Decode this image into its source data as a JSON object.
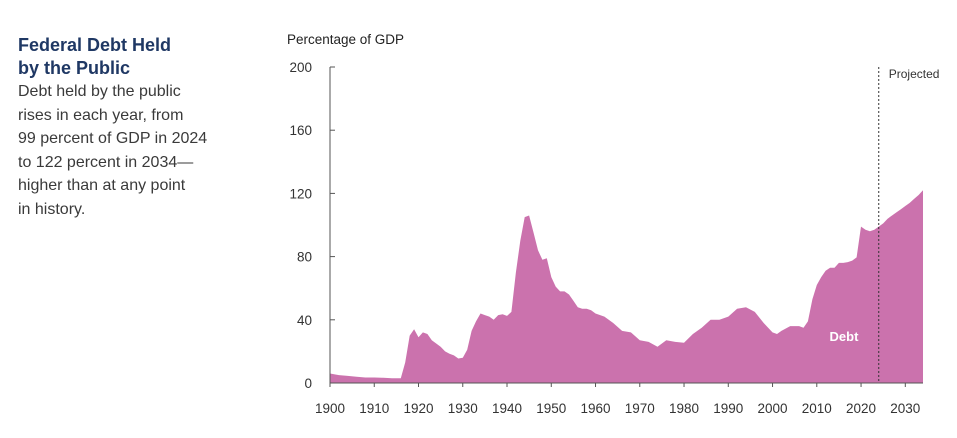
{
  "sidebar": {
    "title": "Federal Debt Held\nby the Public",
    "body": "Debt held by the public\nrises in each year, from\n99 percent of GDP in 2024\nto 122 percent in 2034—\nhigher than at any point\nin history."
  },
  "colors": {
    "area": "#cb72ad",
    "axis": "#555555",
    "text": "#333333",
    "title": "#1f3864"
  },
  "chart_data": {
    "type": "area",
    "ylabel": "Percentage of GDP",
    "ylim": [
      0,
      200
    ],
    "yticks": [
      0,
      40,
      80,
      120,
      160,
      200
    ],
    "xlim": [
      1900,
      2034
    ],
    "xticks": [
      1900,
      1910,
      1920,
      1930,
      1940,
      1950,
      1960,
      1970,
      1980,
      1990,
      2000,
      2010,
      2020,
      2030
    ],
    "projection_start": 2024,
    "projection_label": "Projected",
    "grid": false,
    "series": [
      {
        "name": "Debt",
        "x": [
          1900,
          1902,
          1904,
          1906,
          1908,
          1910,
          1912,
          1914,
          1915,
          1916,
          1917,
          1918,
          1919,
          1920,
          1921,
          1922,
          1923,
          1924,
          1925,
          1926,
          1927,
          1928,
          1929,
          1930,
          1931,
          1932,
          1933,
          1934,
          1935,
          1936,
          1937,
          1938,
          1939,
          1940,
          1941,
          1942,
          1943,
          1944,
          1945,
          1946,
          1947,
          1948,
          1949,
          1950,
          1951,
          1952,
          1953,
          1954,
          1955,
          1956,
          1957,
          1958,
          1959,
          1960,
          1962,
          1964,
          1966,
          1968,
          1970,
          1972,
          1974,
          1976,
          1978,
          1980,
          1982,
          1984,
          1986,
          1988,
          1990,
          1992,
          1994,
          1996,
          1998,
          2000,
          2001,
          2002,
          2004,
          2006,
          2007,
          2008,
          2009,
          2010,
          2011,
          2012,
          2013,
          2014,
          2015,
          2016,
          2017,
          2018,
          2019,
          2020,
          2021,
          2022,
          2023,
          2024,
          2025,
          2026,
          2027,
          2028,
          2029,
          2030,
          2031,
          2032,
          2033,
          2034
        ],
        "values": [
          6,
          5,
          4.5,
          4,
          3.5,
          3.5,
          3.3,
          3,
          3,
          3,
          13,
          30,
          34,
          29,
          32,
          31,
          27,
          25,
          23,
          20,
          18.5,
          17.5,
          15.5,
          16,
          21,
          33,
          39,
          44,
          43,
          42,
          40,
          43,
          43.5,
          42.5,
          45,
          70,
          90,
          105,
          106,
          95,
          84,
          78,
          79,
          67,
          61,
          58,
          58,
          56,
          52,
          48,
          47,
          47,
          46,
          44,
          42,
          38,
          33,
          32,
          27,
          26,
          23,
          27,
          26,
          25.5,
          31,
          35,
          40,
          40,
          42,
          47,
          48,
          45,
          38,
          32,
          31,
          33,
          36,
          36,
          35,
          39,
          53,
          62,
          67,
          71,
          73,
          73,
          76,
          76,
          76.5,
          77.5,
          79.5,
          99,
          97,
          96,
          97,
          99,
          101,
          104,
          106,
          108,
          110,
          112,
          114,
          116.5,
          119,
          122
        ]
      }
    ]
  }
}
